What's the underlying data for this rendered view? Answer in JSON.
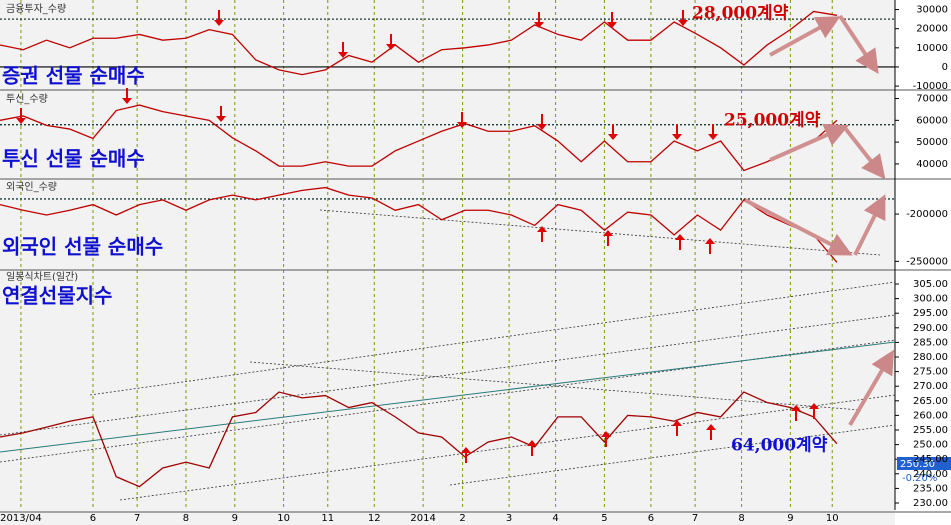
{
  "chart_data": [
    {
      "type": "line",
      "title": "금융투자_수량",
      "annotation": "증권 선물 순매수",
      "annotation_2": "28,000계약",
      "x": [
        0,
        0.5,
        1,
        1.5,
        2,
        2.5,
        3,
        3.5,
        4,
        4.5,
        5,
        5.5,
        6,
        6.5,
        7,
        7.5,
        8,
        8.5,
        9,
        9.5,
        10,
        10.5,
        11,
        11.5,
        12,
        12.5,
        13,
        13.5,
        14,
        14.5,
        15,
        15.5,
        16,
        16.5,
        17,
        17.5,
        18
      ],
      "values": [
        11500,
        9000,
        14000,
        10000,
        15000,
        15000,
        17000,
        14000,
        15000,
        19500,
        17000,
        3700,
        -1500,
        -4000,
        -1500,
        6000,
        2500,
        11500,
        2500,
        9000,
        10000,
        11500,
        14000,
        22000,
        17000,
        14000,
        23500,
        14000,
        14000,
        23500,
        17000,
        10000,
        1000,
        11500,
        19500,
        29000,
        27000
      ],
      "color": "#c00000",
      "ylim": [
        -11000,
        35000
      ],
      "yticks": [
        30000,
        20000,
        10000,
        0,
        -10000
      ],
      "reference_line": 25000,
      "zero_line": 0
    },
    {
      "type": "line",
      "title": "투신_수량",
      "annotation": "투신 선물 순매수",
      "annotation_2": "25,000계약",
      "x": [
        0,
        0.5,
        1,
        1.5,
        2,
        2.5,
        3,
        3.5,
        4,
        4.5,
        5,
        5.5,
        6,
        6.5,
        7,
        7.5,
        8,
        8.5,
        9,
        9.5,
        10,
        10.5,
        11,
        11.5,
        12,
        12.5,
        13,
        13.5,
        14,
        14.5,
        15,
        15.5,
        16,
        16.5,
        17,
        17.5,
        18
      ],
      "values": [
        60000,
        62000,
        57700,
        56000,
        51700,
        64500,
        67000,
        64000,
        62000,
        60000,
        52000,
        46000,
        39000,
        39000,
        41000,
        39000,
        39000,
        46000,
        50500,
        55000,
        58500,
        55000,
        55000,
        57500,
        50500,
        41000,
        50500,
        41000,
        41000,
        50500,
        46000,
        50500,
        37000,
        41000,
        46000,
        50500,
        60000
      ],
      "color": "#c00000",
      "ylim": [
        34000,
        73000
      ],
      "yticks": [
        70000,
        60000,
        50000,
        40000
      ],
      "reference_line": 58000
    },
    {
      "type": "line",
      "title": "외국인_수량",
      "annotation": "외국인 선물 순매수",
      "x": [
        0,
        0.5,
        1,
        1.5,
        2,
        2.5,
        3,
        3.5,
        4,
        4.5,
        5,
        5.5,
        6,
        6.5,
        7,
        7.5,
        8,
        8.5,
        9,
        9.5,
        10,
        10.5,
        11,
        11.5,
        12,
        12.5,
        13,
        13.5,
        14,
        14.5,
        15,
        15.5,
        16,
        16.5,
        17,
        17.5,
        18
      ],
      "values": [
        -190000,
        -196000,
        -201000,
        -196000,
        -190000,
        -201000,
        -190000,
        -185000,
        -196000,
        -185000,
        -180000,
        -185000,
        -180000,
        -175000,
        -172000,
        -180000,
        -183000,
        -196000,
        -190000,
        -206000,
        -196000,
        -196000,
        -201000,
        -212000,
        -190000,
        -196000,
        -217000,
        -198000,
        -201000,
        -222000,
        -201000,
        -217000,
        -185000,
        -201000,
        -212000,
        -222000,
        -251000
      ],
      "color": "#c00000",
      "ylim": [
        -257000,
        -164000
      ],
      "yticks": [
        -200000,
        -250000
      ],
      "reference_line": -184000
    },
    {
      "type": "line",
      "title": "일봉식차트(일간)",
      "annotation": "연결선물지수",
      "annotation_2": "64,000계약",
      "last_value_label": "250.30",
      "change_label": "-0.20%",
      "x": [
        0,
        0.5,
        1,
        1.5,
        2,
        2.5,
        3,
        3.5,
        4,
        4.5,
        5,
        5.5,
        6,
        6.5,
        7,
        7.5,
        8,
        8.5,
        9,
        9.5,
        10,
        10.5,
        11,
        11.5,
        12,
        12.5,
        13,
        13.5,
        14,
        14.5,
        15,
        15.5,
        16,
        16.5,
        17,
        17.5,
        18
      ],
      "values": [
        252.6,
        254,
        256,
        258,
        259.5,
        239,
        235.6,
        242,
        244,
        242,
        259.5,
        261,
        268,
        266,
        266.8,
        262.7,
        264.4,
        259.5,
        254,
        252.6,
        245.8,
        250.9,
        252.6,
        249.2,
        259.5,
        259.5,
        250.9,
        260,
        259.5,
        258,
        261,
        259.5,
        268,
        264.4,
        262.7,
        259.5,
        250.3
      ],
      "color": "#a00000",
      "ylim": [
        227.6,
        309.8
      ],
      "yticks": [
        {
          "value": 305,
          "label": "305.00"
        },
        {
          "value": 300,
          "label": "300.00"
        },
        {
          "value": 295,
          "label": "295.00"
        },
        {
          "value": 290,
          "label": "290.00"
        },
        {
          "value": 285,
          "label": "285.00"
        },
        {
          "value": 280,
          "label": "280.00"
        },
        {
          "value": 275,
          "label": "275.00"
        },
        {
          "value": 270,
          "label": "270.00"
        },
        {
          "value": 265,
          "label": "265.00"
        },
        {
          "value": 260,
          "label": "260.00"
        },
        {
          "value": 255,
          "label": "255.00"
        },
        {
          "value": 250,
          "label": "250.00"
        },
        {
          "value": 245,
          "label": "245.00"
        },
        {
          "value": 240,
          "label": "240.00"
        },
        {
          "value": 235,
          "label": "235.00"
        },
        {
          "value": 230,
          "label": "230.00"
        }
      ],
      "xlim": [
        0,
        19.25
      ],
      "xticks": [
        {
          "value": 0.45,
          "label": "2013/04"
        },
        {
          "value": 2.0,
          "label": "6"
        },
        {
          "value": 2.95,
          "label": "7"
        },
        {
          "value": 4.0,
          "label": "8"
        },
        {
          "value": 5.05,
          "label": "9"
        },
        {
          "value": 6.1,
          "label": "10"
        },
        {
          "value": 7.05,
          "label": "11"
        },
        {
          "value": 8.05,
          "label": "12"
        },
        {
          "value": 9.1,
          "label": "2014"
        },
        {
          "value": 9.95,
          "label": "2"
        },
        {
          "value": 10.95,
          "label": "3"
        },
        {
          "value": 11.95,
          "label": "4"
        },
        {
          "value": 13.0,
          "label": "5"
        },
        {
          "value": 14.0,
          "label": "6"
        },
        {
          "value": 14.95,
          "label": "7"
        },
        {
          "value": 15.95,
          "label": "8"
        },
        {
          "value": 17.0,
          "label": "9"
        },
        {
          "value": 17.9,
          "label": "10"
        }
      ]
    }
  ]
}
